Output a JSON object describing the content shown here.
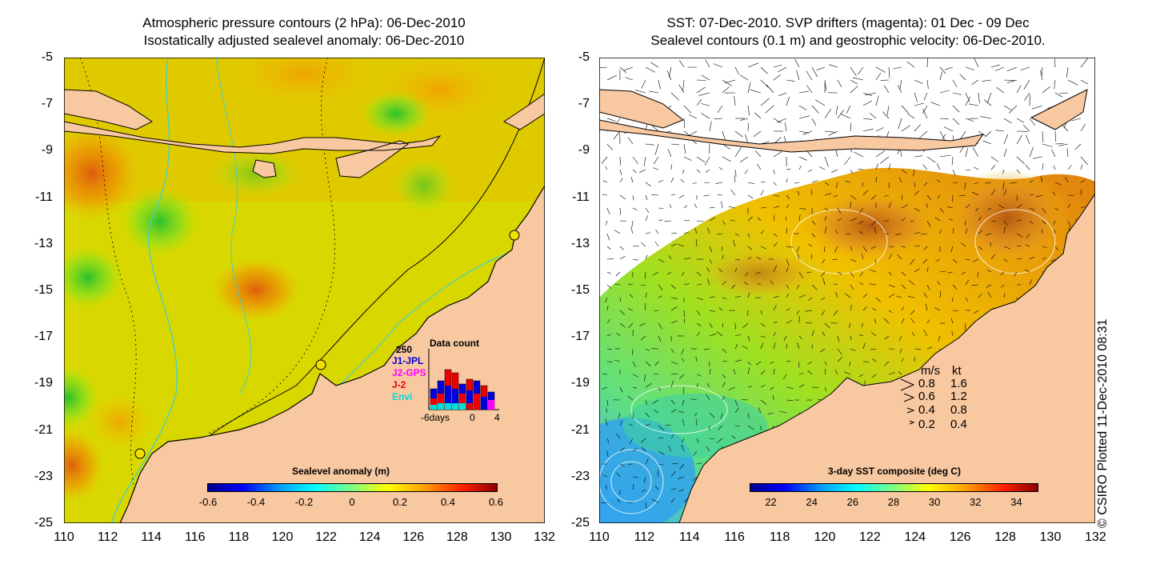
{
  "left_panel": {
    "title_line1": "Atmospheric pressure contours (2 hPa): 06-Dec-2010",
    "title_line2": "Isostatically adjusted sealevel anomaly: 06-Dec-2010",
    "colorbar": {
      "title": "Sealevel anomaly (m)",
      "ticks": [
        "-0.6",
        "-0.4",
        "-0.2",
        "0",
        "0.2",
        "0.4",
        "0.6"
      ],
      "range": [
        -0.6,
        0.6
      ]
    },
    "data_count": {
      "title": "Data count",
      "max_label": "250",
      "missions": [
        {
          "name": "J1-JPL",
          "color": "#0000dd"
        },
        {
          "name": "J2-GPS",
          "color": "#ff00ff"
        },
        {
          "name": "J-2",
          "color": "#ee0000"
        },
        {
          "name": "Envi",
          "color": "#00dddd"
        }
      ],
      "x_labels": [
        "-6days",
        "0",
        "4"
      ]
    }
  },
  "right_panel": {
    "title_line1": "SST: 07-Dec-2010. SVP drifters (magenta): 01 Dec - 09 Dec",
    "title_line2": "Sealevel contours (0.1 m) and geostrophic velocity: 06-Dec-2010.",
    "colorbar": {
      "title": "3-day SST composite (deg C)",
      "ticks": [
        "22",
        "24",
        "26",
        "28",
        "30",
        "32",
        "34"
      ],
      "range": [
        21,
        35
      ]
    },
    "velocity_legend": {
      "header_ms": "m/s",
      "header_kt": "kt",
      "rows": [
        {
          "ms": "0.8",
          "kt": "1.6"
        },
        {
          "ms": "0.6",
          "kt": "1.2"
        },
        {
          "ms": "0.4",
          "kt": "0.8"
        },
        {
          "ms": "0.2",
          "kt": "0.4"
        }
      ]
    }
  },
  "axes": {
    "y_ticks": [
      "-5",
      "-7",
      "-9",
      "-11",
      "-13",
      "-15",
      "-17",
      "-19",
      "-21",
      "-23",
      "-25"
    ],
    "x_ticks": [
      "110",
      "112",
      "114",
      "116",
      "118",
      "120",
      "122",
      "124",
      "126",
      "128",
      "130",
      "132"
    ],
    "lon_range": [
      110,
      132
    ],
    "lat_range": [
      -25,
      -5
    ]
  },
  "credit": "© CSIRO Plotted 11-Dec-2010 08:31",
  "colors": {
    "land": "#f8c8a0",
    "ocean_mid": "#d8e000",
    "sealevel_colormap": [
      "#00008c",
      "#0000ff",
      "#00a0ff",
      "#00ffff",
      "#7fff7f",
      "#ffff00",
      "#ffa000",
      "#ff2000",
      "#8c0000"
    ],
    "coast_line": "#000000",
    "bathymetry_line": "#40d0d0"
  }
}
